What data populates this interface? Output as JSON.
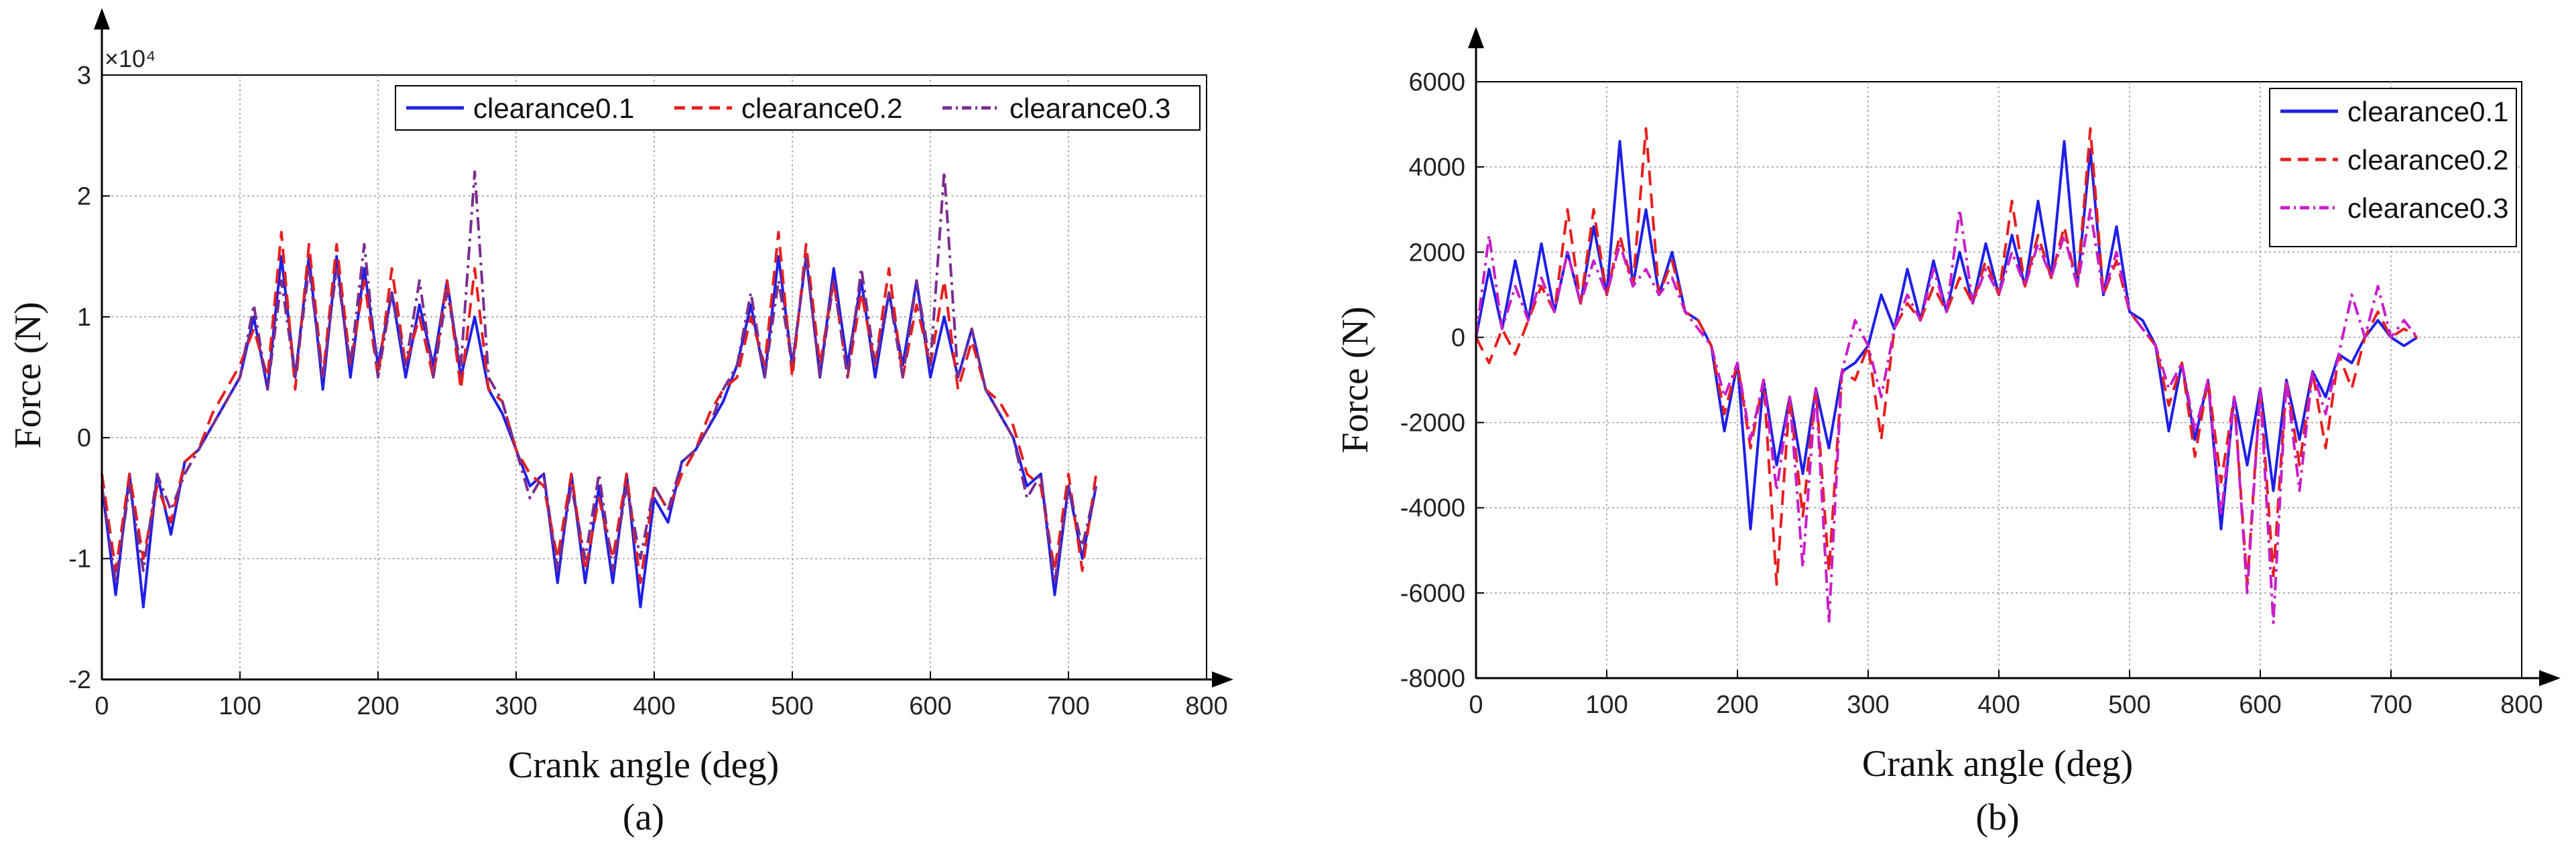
{
  "chart_data": [
    {
      "type": "line",
      "panel_label": "(a)",
      "xlabel": "Crank angle (deg)",
      "ylabel": "Force (N)",
      "xlim": [
        0,
        800
      ],
      "ylim": [
        -2,
        3
      ],
      "y_multiplier": "×10⁴",
      "x_ticks": [
        "0",
        "100",
        "200",
        "300",
        "400",
        "500",
        "600",
        "700",
        "800"
      ],
      "y_ticks": [
        "-2",
        "-1",
        "0",
        "1",
        "2",
        "3"
      ],
      "legend_position": "top-right",
      "series": [
        {
          "name": "clearance0.1",
          "color": "#1f1fe6",
          "style": "solid",
          "x": [
            0,
            10,
            20,
            30,
            40,
            50,
            60,
            70,
            80,
            90,
            100,
            110,
            120,
            130,
            140,
            150,
            160,
            170,
            180,
            190,
            200,
            210,
            220,
            230,
            240,
            250,
            260,
            270,
            280,
            290,
            300,
            310,
            320,
            330,
            340,
            350,
            360,
            370,
            380,
            390,
            400,
            410,
            420,
            430,
            440,
            450,
            460,
            470,
            480,
            490,
            500,
            510,
            520,
            530,
            540,
            550,
            560,
            570,
            580,
            590,
            600,
            610,
            620,
            630,
            640,
            650,
            660,
            670,
            680,
            690,
            700,
            710,
            720
          ],
          "y": [
            -0.4,
            -1.3,
            -0.3,
            -1.4,
            -0.3,
            -0.8,
            -0.2,
            -0.1,
            0.1,
            0.3,
            0.5,
            1.0,
            0.4,
            1.5,
            0.5,
            1.5,
            0.4,
            1.5,
            0.5,
            1.4,
            0.6,
            1.2,
            0.5,
            1.1,
            0.6,
            1.3,
            0.5,
            1.0,
            0.4,
            0.2,
            -0.1,
            -0.4,
            -0.3,
            -1.2,
            -0.3,
            -1.2,
            -0.4,
            -1.2,
            -0.3,
            -1.4,
            -0.5,
            -0.7,
            -0.2,
            -0.1,
            0.1,
            0.3,
            0.6,
            1.1,
            0.5,
            1.5,
            0.6,
            1.5,
            0.5,
            1.4,
            0.6,
            1.3,
            0.5,
            1.2,
            0.6,
            1.3,
            0.5,
            1.0,
            0.5,
            0.9,
            0.4,
            0.2,
            0.0,
            -0.4,
            -0.3,
            -1.3,
            -0.4,
            -1.0,
            -0.4
          ]
        },
        {
          "name": "clearance0.2",
          "color": "#e61f1f",
          "style": "dashed",
          "x": [
            0,
            10,
            20,
            30,
            40,
            50,
            60,
            70,
            80,
            90,
            100,
            110,
            120,
            130,
            140,
            150,
            160,
            170,
            180,
            190,
            200,
            210,
            220,
            230,
            240,
            250,
            260,
            270,
            280,
            290,
            300,
            310,
            320,
            330,
            340,
            350,
            360,
            370,
            380,
            390,
            400,
            410,
            420,
            430,
            440,
            450,
            460,
            470,
            480,
            490,
            500,
            510,
            520,
            530,
            540,
            550,
            560,
            570,
            580,
            590,
            600,
            610,
            620,
            630,
            640,
            650,
            660,
            670,
            680,
            690,
            700,
            710,
            720
          ],
          "y": [
            -0.3,
            -1.1,
            -0.3,
            -1.0,
            -0.4,
            -0.7,
            -0.2,
            -0.1,
            0.2,
            0.4,
            0.6,
            0.9,
            0.5,
            1.7,
            0.4,
            1.6,
            0.5,
            1.6,
            0.6,
            1.3,
            0.5,
            1.4,
            0.6,
            1.0,
            0.5,
            1.3,
            0.4,
            1.4,
            0.4,
            0.3,
            -0.1,
            -0.3,
            -0.4,
            -1.0,
            -0.3,
            -1.1,
            -0.5,
            -1.0,
            -0.3,
            -1.2,
            -0.4,
            -0.6,
            -0.3,
            -0.1,
            0.2,
            0.4,
            0.5,
            1.0,
            0.6,
            1.7,
            0.5,
            1.6,
            0.6,
            1.3,
            0.5,
            1.2,
            0.6,
            1.4,
            0.5,
            1.1,
            0.6,
            1.3,
            0.4,
            0.8,
            0.4,
            0.3,
            0.1,
            -0.3,
            -0.4,
            -1.1,
            -0.3,
            -1.1,
            -0.3
          ]
        },
        {
          "name": "clearance0.3",
          "color": "#7a2e8e",
          "style": "dashdot",
          "x": [
            0,
            10,
            20,
            30,
            40,
            50,
            60,
            70,
            80,
            90,
            100,
            110,
            120,
            130,
            140,
            150,
            160,
            170,
            180,
            190,
            200,
            210,
            220,
            230,
            240,
            250,
            260,
            270,
            280,
            290,
            300,
            310,
            320,
            330,
            340,
            350,
            360,
            370,
            380,
            390,
            400,
            410,
            420,
            430,
            440,
            450,
            460,
            470,
            480,
            490,
            500,
            510,
            520,
            530,
            540,
            550,
            560,
            570,
            580,
            590,
            600,
            610,
            620,
            630,
            640,
            650,
            660,
            670,
            680,
            690,
            700,
            710,
            720
          ],
          "y": [
            -0.4,
            -1.2,
            -0.4,
            -1.1,
            -0.3,
            -0.6,
            -0.3,
            -0.1,
            0.1,
            0.3,
            0.5,
            1.1,
            0.4,
            1.3,
            0.5,
            1.4,
            0.5,
            1.4,
            0.6,
            1.6,
            0.5,
            1.2,
            0.6,
            1.3,
            0.5,
            1.2,
            0.6,
            2.2,
            0.5,
            0.3,
            -0.1,
            -0.5,
            -0.3,
            -1.1,
            -0.4,
            -1.0,
            -0.3,
            -1.1,
            -0.4,
            -1.0,
            -0.4,
            -0.6,
            -0.2,
            -0.1,
            0.1,
            0.4,
            0.6,
            1.2,
            0.5,
            1.3,
            0.6,
            1.5,
            0.5,
            1.3,
            0.5,
            1.4,
            0.6,
            1.2,
            0.5,
            1.3,
            0.6,
            2.2,
            0.5,
            0.9,
            0.4,
            0.2,
            0.0,
            -0.5,
            -0.3,
            -1.2,
            -0.4,
            -0.9,
            -0.4
          ]
        }
      ]
    },
    {
      "type": "line",
      "panel_label": "(b)",
      "xlabel": "Crank angle (deg)",
      "ylabel": "Force (N)",
      "xlim": [
        0,
        800
      ],
      "ylim": [
        -8000,
        6000
      ],
      "x_ticks": [
        "0",
        "100",
        "200",
        "300",
        "400",
        "500",
        "600",
        "700",
        "800"
      ],
      "y_ticks": [
        "-8000",
        "-6000",
        "-4000",
        "-2000",
        "0",
        "2000",
        "4000",
        "6000"
      ],
      "legend_position": "top-right",
      "series": [
        {
          "name": "clearance0.1",
          "color": "#1f1fe6",
          "style": "solid",
          "x": [
            0,
            10,
            20,
            30,
            40,
            50,
            60,
            70,
            80,
            90,
            100,
            110,
            120,
            130,
            140,
            150,
            160,
            170,
            180,
            190,
            200,
            210,
            220,
            230,
            240,
            250,
            260,
            270,
            280,
            290,
            300,
            310,
            320,
            330,
            340,
            350,
            360,
            370,
            380,
            390,
            400,
            410,
            420,
            430,
            440,
            450,
            460,
            470,
            480,
            490,
            500,
            510,
            520,
            530,
            540,
            550,
            560,
            570,
            580,
            590,
            600,
            610,
            620,
            630,
            640,
            650,
            660,
            670,
            680,
            690,
            700,
            710,
            720
          ],
          "y": [
            0,
            1600,
            200,
            1800,
            400,
            2200,
            600,
            2000,
            800,
            2600,
            1000,
            4600,
            1200,
            3000,
            1000,
            2000,
            600,
            400,
            -200,
            -2200,
            -600,
            -4500,
            -1000,
            -3000,
            -1400,
            -3200,
            -1200,
            -2600,
            -800,
            -600,
            -200,
            1000,
            200,
            1600,
            400,
            1800,
            600,
            2000,
            800,
            2200,
            1000,
            2400,
            1200,
            3200,
            1400,
            4600,
            1200,
            4400,
            1000,
            2600,
            600,
            400,
            -200,
            -2200,
            -600,
            -2400,
            -1000,
            -4500,
            -1400,
            -3000,
            -1200,
            -3600,
            -1000,
            -2400,
            -800,
            -1400,
            -400,
            -600,
            0,
            400,
            0,
            -200,
            0
          ]
        },
        {
          "name": "clearance0.2",
          "color": "#e61f1f",
          "style": "dashed",
          "x": [
            0,
            10,
            20,
            30,
            40,
            50,
            60,
            70,
            80,
            90,
            100,
            110,
            120,
            130,
            140,
            150,
            160,
            170,
            180,
            190,
            200,
            210,
            220,
            230,
            240,
            250,
            260,
            270,
            280,
            290,
            300,
            310,
            320,
            330,
            340,
            350,
            360,
            370,
            380,
            390,
            400,
            410,
            420,
            430,
            440,
            450,
            460,
            470,
            480,
            490,
            500,
            510,
            520,
            530,
            540,
            550,
            560,
            570,
            580,
            590,
            600,
            610,
            620,
            630,
            640,
            650,
            660,
            670,
            680,
            690,
            700,
            710,
            720
          ],
          "y": [
            0,
            -600,
            200,
            -400,
            400,
            1200,
            600,
            3000,
            800,
            3000,
            1000,
            2400,
            1200,
            4900,
            1000,
            1800,
            600,
            400,
            -200,
            -1800,
            -600,
            -2600,
            -1000,
            -5800,
            -1400,
            -4200,
            -1200,
            -5500,
            -800,
            -1000,
            -200,
            -2400,
            200,
            800,
            400,
            1200,
            600,
            1400,
            800,
            1800,
            1000,
            3200,
            1200,
            2400,
            1400,
            2600,
            1200,
            4900,
            1000,
            1800,
            600,
            200,
            -200,
            -1600,
            -600,
            -2800,
            -1000,
            -3400,
            -1400,
            -5800,
            -1200,
            -5600,
            -1000,
            -3000,
            -800,
            -2600,
            -400,
            -1200,
            0,
            600,
            0,
            200,
            0
          ]
        },
        {
          "name": "clearance0.3",
          "color": "#c81ec8",
          "style": "dashdot",
          "x": [
            0,
            10,
            20,
            30,
            40,
            50,
            60,
            70,
            80,
            90,
            100,
            110,
            120,
            130,
            140,
            150,
            160,
            170,
            180,
            190,
            200,
            210,
            220,
            230,
            240,
            250,
            260,
            270,
            280,
            290,
            300,
            310,
            320,
            330,
            340,
            350,
            360,
            370,
            380,
            390,
            400,
            410,
            420,
            430,
            440,
            450,
            460,
            470,
            480,
            490,
            500,
            510,
            520,
            530,
            540,
            550,
            560,
            570,
            580,
            590,
            600,
            610,
            620,
            630,
            640,
            650,
            660,
            670,
            680,
            690,
            700,
            710,
            720
          ],
          "y": [
            0,
            2400,
            200,
            1200,
            400,
            1400,
            600,
            2000,
            800,
            1800,
            1000,
            2200,
            1200,
            1600,
            1000,
            1400,
            600,
            200,
            -200,
            -1400,
            -600,
            -2400,
            -1000,
            -3600,
            -1400,
            -5400,
            -1200,
            -6700,
            -800,
            400,
            -200,
            -1400,
            200,
            1000,
            400,
            1600,
            600,
            3000,
            800,
            1600,
            1000,
            2000,
            1200,
            2200,
            1400,
            2400,
            1200,
            3000,
            1000,
            2000,
            600,
            200,
            -200,
            -1200,
            -600,
            -2200,
            -1000,
            -4200,
            -1400,
            -6000,
            -1200,
            -6700,
            -1000,
            -3600,
            -800,
            -1800,
            -400,
            1000,
            0,
            1200,
            0,
            400,
            0
          ]
        }
      ]
    }
  ]
}
